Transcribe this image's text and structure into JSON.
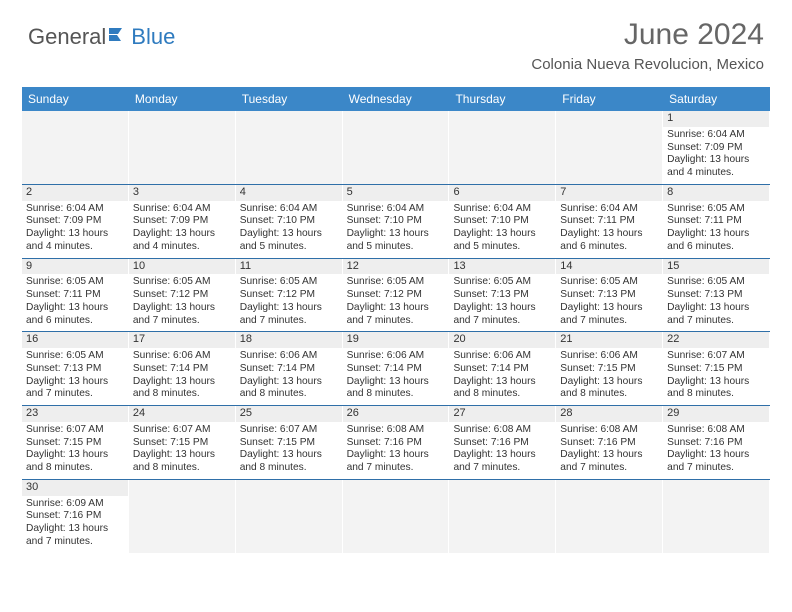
{
  "logo": {
    "general": "General",
    "blue": "Blue"
  },
  "title": "June 2024",
  "location": "Colonia Nueva Revolucion, Mexico",
  "day_headers": [
    "Sunday",
    "Monday",
    "Tuesday",
    "Wednesday",
    "Thursday",
    "Friday",
    "Saturday"
  ],
  "colors": {
    "header_bar": "#3b87c8",
    "row_divider": "#2f6fa8",
    "daynum_bg": "#eeeeee",
    "title_color": "#666666",
    "logo_blue": "#2f7bbf"
  },
  "weeks": [
    [
      null,
      null,
      null,
      null,
      null,
      null,
      {
        "n": "1",
        "sr": "Sunrise: 6:04 AM",
        "ss": "Sunset: 7:09 PM",
        "d1": "Daylight: 13 hours",
        "d2": "and 4 minutes."
      }
    ],
    [
      {
        "n": "2",
        "sr": "Sunrise: 6:04 AM",
        "ss": "Sunset: 7:09 PM",
        "d1": "Daylight: 13 hours",
        "d2": "and 4 minutes."
      },
      {
        "n": "3",
        "sr": "Sunrise: 6:04 AM",
        "ss": "Sunset: 7:09 PM",
        "d1": "Daylight: 13 hours",
        "d2": "and 4 minutes."
      },
      {
        "n": "4",
        "sr": "Sunrise: 6:04 AM",
        "ss": "Sunset: 7:10 PM",
        "d1": "Daylight: 13 hours",
        "d2": "and 5 minutes."
      },
      {
        "n": "5",
        "sr": "Sunrise: 6:04 AM",
        "ss": "Sunset: 7:10 PM",
        "d1": "Daylight: 13 hours",
        "d2": "and 5 minutes."
      },
      {
        "n": "6",
        "sr": "Sunrise: 6:04 AM",
        "ss": "Sunset: 7:10 PM",
        "d1": "Daylight: 13 hours",
        "d2": "and 5 minutes."
      },
      {
        "n": "7",
        "sr": "Sunrise: 6:04 AM",
        "ss": "Sunset: 7:11 PM",
        "d1": "Daylight: 13 hours",
        "d2": "and 6 minutes."
      },
      {
        "n": "8",
        "sr": "Sunrise: 6:05 AM",
        "ss": "Sunset: 7:11 PM",
        "d1": "Daylight: 13 hours",
        "d2": "and 6 minutes."
      }
    ],
    [
      {
        "n": "9",
        "sr": "Sunrise: 6:05 AM",
        "ss": "Sunset: 7:11 PM",
        "d1": "Daylight: 13 hours",
        "d2": "and 6 minutes."
      },
      {
        "n": "10",
        "sr": "Sunrise: 6:05 AM",
        "ss": "Sunset: 7:12 PM",
        "d1": "Daylight: 13 hours",
        "d2": "and 7 minutes."
      },
      {
        "n": "11",
        "sr": "Sunrise: 6:05 AM",
        "ss": "Sunset: 7:12 PM",
        "d1": "Daylight: 13 hours",
        "d2": "and 7 minutes."
      },
      {
        "n": "12",
        "sr": "Sunrise: 6:05 AM",
        "ss": "Sunset: 7:12 PM",
        "d1": "Daylight: 13 hours",
        "d2": "and 7 minutes."
      },
      {
        "n": "13",
        "sr": "Sunrise: 6:05 AM",
        "ss": "Sunset: 7:13 PM",
        "d1": "Daylight: 13 hours",
        "d2": "and 7 minutes."
      },
      {
        "n": "14",
        "sr": "Sunrise: 6:05 AM",
        "ss": "Sunset: 7:13 PM",
        "d1": "Daylight: 13 hours",
        "d2": "and 7 minutes."
      },
      {
        "n": "15",
        "sr": "Sunrise: 6:05 AM",
        "ss": "Sunset: 7:13 PM",
        "d1": "Daylight: 13 hours",
        "d2": "and 7 minutes."
      }
    ],
    [
      {
        "n": "16",
        "sr": "Sunrise: 6:05 AM",
        "ss": "Sunset: 7:13 PM",
        "d1": "Daylight: 13 hours",
        "d2": "and 7 minutes."
      },
      {
        "n": "17",
        "sr": "Sunrise: 6:06 AM",
        "ss": "Sunset: 7:14 PM",
        "d1": "Daylight: 13 hours",
        "d2": "and 8 minutes."
      },
      {
        "n": "18",
        "sr": "Sunrise: 6:06 AM",
        "ss": "Sunset: 7:14 PM",
        "d1": "Daylight: 13 hours",
        "d2": "and 8 minutes."
      },
      {
        "n": "19",
        "sr": "Sunrise: 6:06 AM",
        "ss": "Sunset: 7:14 PM",
        "d1": "Daylight: 13 hours",
        "d2": "and 8 minutes."
      },
      {
        "n": "20",
        "sr": "Sunrise: 6:06 AM",
        "ss": "Sunset: 7:14 PM",
        "d1": "Daylight: 13 hours",
        "d2": "and 8 minutes."
      },
      {
        "n": "21",
        "sr": "Sunrise: 6:06 AM",
        "ss": "Sunset: 7:15 PM",
        "d1": "Daylight: 13 hours",
        "d2": "and 8 minutes."
      },
      {
        "n": "22",
        "sr": "Sunrise: 6:07 AM",
        "ss": "Sunset: 7:15 PM",
        "d1": "Daylight: 13 hours",
        "d2": "and 8 minutes."
      }
    ],
    [
      {
        "n": "23",
        "sr": "Sunrise: 6:07 AM",
        "ss": "Sunset: 7:15 PM",
        "d1": "Daylight: 13 hours",
        "d2": "and 8 minutes."
      },
      {
        "n": "24",
        "sr": "Sunrise: 6:07 AM",
        "ss": "Sunset: 7:15 PM",
        "d1": "Daylight: 13 hours",
        "d2": "and 8 minutes."
      },
      {
        "n": "25",
        "sr": "Sunrise: 6:07 AM",
        "ss": "Sunset: 7:15 PM",
        "d1": "Daylight: 13 hours",
        "d2": "and 8 minutes."
      },
      {
        "n": "26",
        "sr": "Sunrise: 6:08 AM",
        "ss": "Sunset: 7:16 PM",
        "d1": "Daylight: 13 hours",
        "d2": "and 7 minutes."
      },
      {
        "n": "27",
        "sr": "Sunrise: 6:08 AM",
        "ss": "Sunset: 7:16 PM",
        "d1": "Daylight: 13 hours",
        "d2": "and 7 minutes."
      },
      {
        "n": "28",
        "sr": "Sunrise: 6:08 AM",
        "ss": "Sunset: 7:16 PM",
        "d1": "Daylight: 13 hours",
        "d2": "and 7 minutes."
      },
      {
        "n": "29",
        "sr": "Sunrise: 6:08 AM",
        "ss": "Sunset: 7:16 PM",
        "d1": "Daylight: 13 hours",
        "d2": "and 7 minutes."
      }
    ],
    [
      {
        "n": "30",
        "sr": "Sunrise: 6:09 AM",
        "ss": "Sunset: 7:16 PM",
        "d1": "Daylight: 13 hours",
        "d2": "and 7 minutes."
      },
      null,
      null,
      null,
      null,
      null,
      null
    ]
  ]
}
